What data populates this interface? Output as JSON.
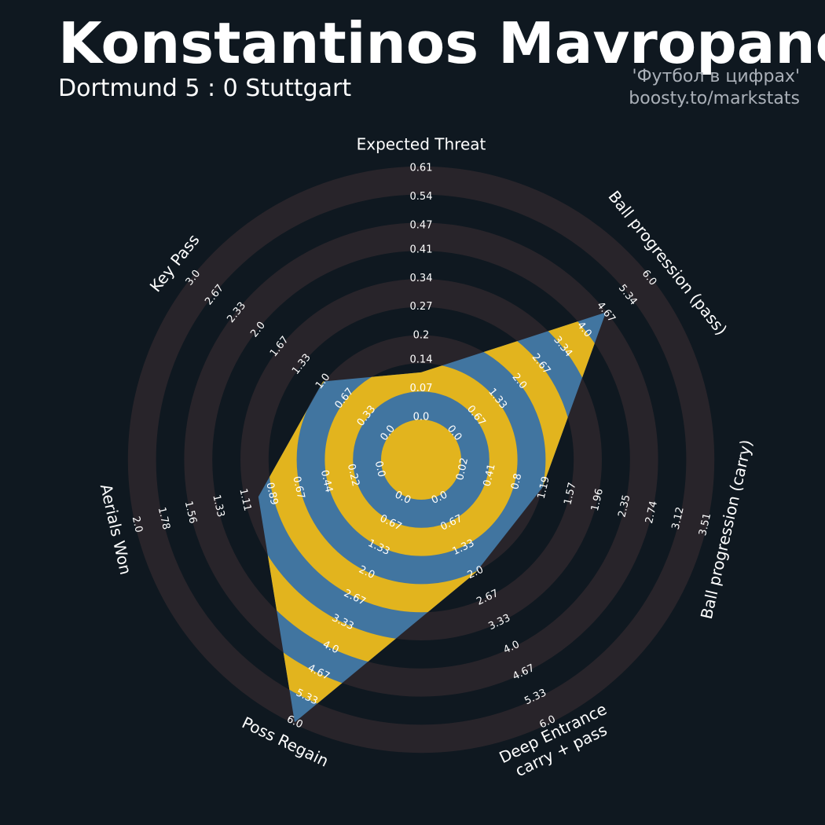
{
  "chart_data": {
    "type": "radar",
    "title": "Konstantinos Mavropanos",
    "subtitle": "Dortmund 5 : 0 Stuttgart",
    "credits": [
      "'Футбол в цифрах'",
      "boosty.to/markstats"
    ],
    "colors": {
      "background": "#0f1820",
      "ring": "#28242a",
      "fill": "#4175a0",
      "band": "#e2b41e"
    },
    "params": [
      {
        "label": [
          "Expected Threat"
        ],
        "range": [
          0,
          0.61
        ],
        "value": 0.11,
        "ticks": [
          {
            "value": 0,
            "label": "0.0"
          },
          0.07,
          0.14,
          0.2,
          0.27,
          0.34,
          0.41,
          0.47,
          0.54,
          0.61
        ]
      },
      {
        "label": [
          "Ball progression (pass)"
        ],
        "range": [
          0,
          6
        ],
        "value": 4.67,
        "ticks": [
          {
            "value": 0,
            "label": "0.0"
          },
          0.67,
          1.33,
          {
            "value": 2,
            "label": "2.0"
          },
          2.67,
          3.34,
          {
            "value": 4,
            "label": "4.0"
          },
          4.67,
          5.34,
          {
            "value": 6,
            "label": "6.0"
          }
        ]
      },
      {
        "label": [
          "Ball progression (carry)"
        ],
        "range": [
          0.02,
          3.51
        ],
        "value": 1.17,
        "ticks": [
          0.02,
          0.41,
          0.8,
          1.19,
          1.57,
          1.96,
          2.35,
          2.74,
          3.12,
          3.51
        ]
      },
      {
        "label": [
          "Deep Entrance",
          "carry + pass"
        ],
        "range": [
          0,
          6
        ],
        "value": 2.0,
        "ticks": [
          {
            "value": 0,
            "label": "0.0"
          },
          0.67,
          1.33,
          {
            "value": 2,
            "label": "2.0"
          },
          2.67,
          3.33,
          {
            "value": 4,
            "label": "4.0"
          },
          4.67,
          5.33,
          {
            "value": 6,
            "label": "6.0"
          }
        ]
      },
      {
        "label": [
          "Poss Regain"
        ],
        "range": [
          0,
          6
        ],
        "value": 6.0,
        "ticks": [
          {
            "value": 0,
            "label": "0.0"
          },
          0.67,
          1.33,
          {
            "value": 2,
            "label": "2.0"
          },
          2.67,
          3.33,
          {
            "value": 4,
            "label": "4.0"
          },
          4.67,
          5.33,
          {
            "value": 6,
            "label": "6.0"
          }
        ]
      },
      {
        "label": [
          "Aerials Won"
        ],
        "range": [
          0,
          2
        ],
        "value": 1.0,
        "ticks": [
          {
            "value": 0,
            "label": "0.0"
          },
          0.22,
          0.44,
          0.67,
          0.89,
          1.11,
          1.33,
          1.56,
          1.78,
          {
            "value": 2,
            "label": "2.0"
          }
        ]
      },
      {
        "label": [
          "Key Pass"
        ],
        "range": [
          0,
          3
        ],
        "value": 1.0,
        "ticks": [
          {
            "value": 0,
            "label": "0.0"
          },
          0.33,
          0.67,
          {
            "value": 1,
            "label": "1.0"
          },
          1.33,
          1.67,
          {
            "value": 2,
            "label": "2.0"
          },
          2.33,
          2.67,
          {
            "value": 3,
            "label": "3.0"
          }
        ]
      }
    ]
  }
}
